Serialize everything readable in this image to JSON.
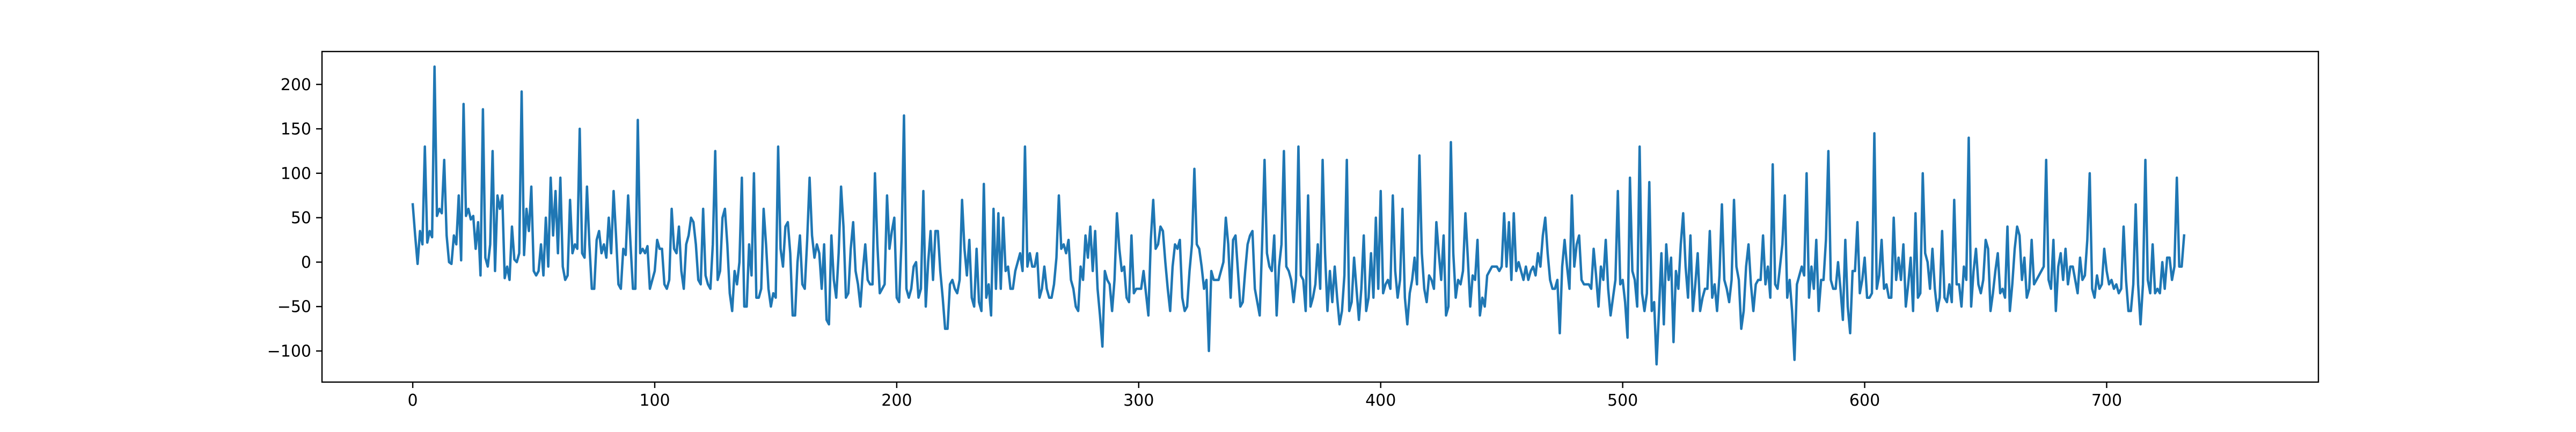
{
  "chart_data": {
    "type": "line",
    "title": "",
    "xlabel": "",
    "ylabel": "",
    "xlim": [
      -37.5,
      787.5
    ],
    "ylim": [
      -135,
      237
    ],
    "x_ticks": [
      0,
      100,
      200,
      300,
      400,
      500,
      600,
      700
    ],
    "x_tick_labels": [
      "0",
      "100",
      "200",
      "300",
      "400",
      "500",
      "600",
      "700"
    ],
    "y_ticks": [
      -100,
      -50,
      0,
      50,
      100,
      150,
      200
    ],
    "y_tick_labels": [
      "−100",
      "−50",
      "0",
      "50",
      "100",
      "150",
      "200"
    ],
    "grid": false,
    "legend": "none",
    "colors": {
      "line": "#1f77b4",
      "axes": "#000000",
      "background": "#ffffff"
    },
    "x_start": 0,
    "x_step": 1,
    "series": [
      {
        "values": [
          65,
          30,
          -2,
          35,
          20,
          130,
          22,
          35,
          28,
          220,
          52,
          60,
          55,
          115,
          30,
          0,
          -2,
          30,
          20,
          75,
          2,
          178,
          52,
          60,
          48,
          52,
          15,
          45,
          -15,
          172,
          5,
          -5,
          20,
          125,
          -10,
          75,
          60,
          75,
          -18,
          -5,
          -20,
          40,
          3,
          0,
          10,
          192,
          8,
          60,
          35,
          85,
          -10,
          -15,
          -10,
          20,
          -15,
          50,
          -5,
          95,
          30,
          80,
          10,
          95,
          -5,
          -20,
          -15,
          70,
          10,
          20,
          15,
          150,
          10,
          5,
          85,
          20,
          -30,
          -30,
          25,
          35,
          10,
          20,
          5,
          50,
          10,
          80,
          30,
          -25,
          -30,
          15,
          8,
          75,
          20,
          -30,
          -30,
          160,
          10,
          15,
          10,
          18,
          -30,
          -20,
          -10,
          25,
          15,
          15,
          -25,
          -30,
          -20,
          60,
          15,
          10,
          40,
          -10,
          -30,
          20,
          30,
          50,
          45,
          20,
          -20,
          -25,
          60,
          -15,
          -25,
          -30,
          20,
          125,
          -20,
          -10,
          50,
          60,
          20,
          -35,
          -55,
          -10,
          -25,
          0,
          95,
          -50,
          -50,
          20,
          -15,
          100,
          -40,
          -40,
          -30,
          60,
          20,
          -30,
          -50,
          -35,
          -40,
          130,
          15,
          -5,
          40,
          45,
          10,
          -60,
          -60,
          0,
          30,
          -25,
          -30,
          25,
          95,
          30,
          5,
          20,
          10,
          -30,
          20,
          -65,
          -70,
          30,
          -20,
          -40,
          10,
          85,
          40,
          -40,
          -35,
          15,
          45,
          -10,
          -25,
          -50,
          -10,
          20,
          -20,
          -25,
          -25,
          100,
          20,
          -35,
          -30,
          -25,
          75,
          15,
          35,
          50,
          -40,
          -45,
          25,
          165,
          -30,
          -40,
          -30,
          -5,
          0,
          -40,
          -30,
          80,
          -50,
          0,
          35,
          -20,
          35,
          35,
          -10,
          -40,
          -75,
          -75,
          -25,
          -20,
          -30,
          -35,
          -20,
          70,
          15,
          -15,
          25,
          -40,
          -50,
          15,
          -45,
          -55,
          88,
          -40,
          -25,
          -60,
          60,
          -30,
          55,
          -30,
          50,
          -10,
          -5,
          -30,
          -30,
          -10,
          0,
          10,
          -10,
          130,
          -5,
          10,
          -5,
          -5,
          10,
          -40,
          -30,
          -5,
          -30,
          -40,
          -40,
          -25,
          5,
          75,
          15,
          20,
          10,
          25,
          -20,
          -30,
          -50,
          -55,
          -5,
          -20,
          30,
          5,
          40,
          -10,
          35,
          -30,
          -60,
          -95,
          -10,
          -20,
          -25,
          -55,
          -20,
          55,
          15,
          -10,
          -5,
          -40,
          -45,
          30,
          -35,
          -30,
          -30,
          -30,
          -10,
          -35,
          -60,
          25,
          70,
          15,
          20,
          40,
          35,
          0,
          -30,
          -55,
          -5,
          20,
          15,
          25,
          -40,
          -55,
          -50,
          -10,
          20,
          105,
          20,
          15,
          -5,
          -30,
          -20,
          -100,
          -10,
          -20,
          -20,
          -20,
          -10,
          0,
          50,
          20,
          -40,
          25,
          30,
          -10,
          -50,
          -45,
          -10,
          20,
          30,
          35,
          -30,
          -45,
          -60,
          20,
          115,
          10,
          -5,
          -10,
          30,
          -60,
          -5,
          20,
          125,
          -5,
          -10,
          -20,
          -45,
          -20,
          130,
          -15,
          -20,
          -55,
          75,
          -50,
          -40,
          -25,
          20,
          -30,
          115,
          10,
          -55,
          -10,
          -45,
          -5,
          -40,
          -70,
          -55,
          -15,
          115,
          -55,
          -45,
          5,
          -30,
          -65,
          -30,
          30,
          -55,
          -40,
          10,
          -40,
          50,
          -30,
          80,
          -35,
          -25,
          -20,
          -30,
          75,
          -10,
          -40,
          -20,
          60,
          -40,
          -70,
          -35,
          -20,
          5,
          -25,
          120,
          10,
          -30,
          -45,
          -15,
          -20,
          -30,
          45,
          10,
          -20,
          30,
          -60,
          -50,
          135,
          10,
          -40,
          -20,
          -25,
          -10,
          55,
          5,
          -50,
          -15,
          -20,
          25,
          -60,
          -40,
          -50,
          -15,
          -10,
          -5,
          -5,
          -5,
          -10,
          -5,
          55,
          -5,
          45,
          -20,
          55,
          -10,
          0,
          -10,
          -20,
          -5,
          -20,
          -10,
          -5,
          -15,
          10,
          -5,
          30,
          50,
          10,
          -20,
          -30,
          -30,
          -20,
          -80,
          -5,
          25,
          -5,
          -30,
          75,
          -5,
          20,
          30,
          -20,
          -25,
          -25,
          -25,
          -30,
          15,
          -15,
          -50,
          -5,
          -20,
          25,
          -30,
          -60,
          -40,
          -20,
          80,
          -25,
          -20,
          -45,
          -85,
          95,
          -10,
          -20,
          -50,
          130,
          -35,
          -55,
          -35,
          90,
          -55,
          -45,
          -115,
          -55,
          10,
          -70,
          20,
          -20,
          5,
          -90,
          -10,
          -30,
          20,
          55,
          -5,
          -40,
          30,
          -55,
          -25,
          10,
          -55,
          -40,
          -30,
          -30,
          35,
          -40,
          -25,
          -55,
          -15,
          65,
          -20,
          -30,
          -45,
          -20,
          70,
          -5,
          -20,
          -75,
          -55,
          -5,
          20,
          -25,
          -55,
          -25,
          -20,
          -20,
          30,
          -25,
          -5,
          -40,
          110,
          -25,
          -30,
          -5,
          20,
          75,
          -40,
          -20,
          -55,
          -110,
          -25,
          -15,
          -5,
          -15,
          100,
          -40,
          -5,
          -30,
          25,
          -55,
          -20,
          -20,
          25,
          125,
          -20,
          -30,
          -30,
          0,
          -30,
          -65,
          25,
          -50,
          -80,
          -10,
          -10,
          45,
          -35,
          -20,
          5,
          -40,
          -40,
          -35,
          145,
          -30,
          -15,
          25,
          -30,
          -25,
          -40,
          -40,
          50,
          -20,
          5,
          -20,
          20,
          -50,
          -25,
          5,
          -55,
          55,
          -40,
          -35,
          100,
          10,
          0,
          -30,
          15,
          -30,
          -55,
          -40,
          35,
          -40,
          -45,
          -25,
          -45,
          70,
          -25,
          -25,
          -50,
          -5,
          -20,
          140,
          -50,
          -10,
          15,
          -25,
          -35,
          -20,
          25,
          15,
          -55,
          -35,
          -10,
          10,
          -35,
          -30,
          -40,
          40,
          -55,
          -25,
          15,
          40,
          30,
          -20,
          5,
          -40,
          -30,
          25,
          -25,
          -20,
          -15,
          -10,
          -5,
          115,
          -20,
          -30,
          25,
          -55,
          -5,
          10,
          -20,
          15,
          -25,
          -5,
          -5,
          -20,
          -35,
          5,
          -20,
          -15,
          25,
          100,
          -30,
          -40,
          -15,
          -30,
          -25,
          15,
          -10,
          -25,
          -20,
          -30,
          -25,
          -35,
          -30,
          40,
          -20,
          -55,
          -55,
          -25,
          65,
          -25,
          -70,
          -25,
          115,
          -20,
          -35,
          20,
          -35,
          -30,
          -35,
          0,
          -30,
          5,
          5,
          -20,
          -5,
          95,
          -5,
          -5,
          30
        ]
      }
    ]
  }
}
